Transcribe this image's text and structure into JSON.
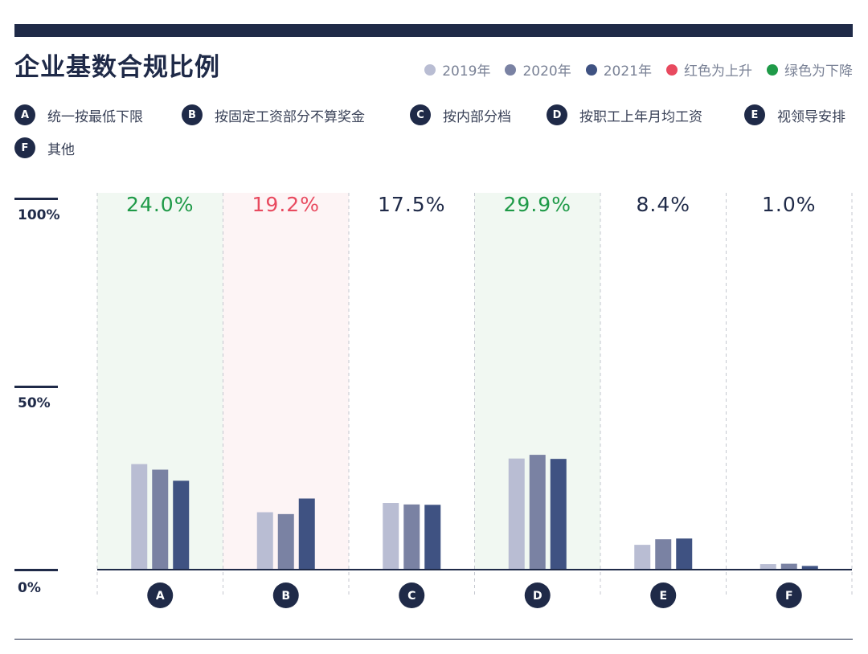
{
  "chart_data": {
    "type": "bar",
    "title": "企业基数合规比例",
    "categories": [
      "A",
      "B",
      "C",
      "D",
      "E",
      "F"
    ],
    "category_labels": [
      "统一按最低下限",
      "按固定工资部分不算奖金",
      "按内部分档",
      "按职工上年月均工资",
      "视领导安排",
      "其他"
    ],
    "series": [
      {
        "name": "2019年",
        "color": "#b9bdd3",
        "values": [
          28.5,
          15.5,
          18.0,
          30.0,
          6.7,
          1.5
        ]
      },
      {
        "name": "2020年",
        "color": "#7a82a3",
        "values": [
          27.0,
          15.0,
          17.6,
          31.0,
          8.2,
          1.6
        ]
      },
      {
        "name": "2021年",
        "color": "#3f5282",
        "values": [
          24.0,
          19.2,
          17.5,
          29.9,
          8.4,
          1.0
        ]
      }
    ],
    "value_labels": [
      "24.0%",
      "19.2%",
      "17.5%",
      "29.9%",
      "8.4%",
      "1.0%"
    ],
    "trend": [
      "down",
      "up",
      "none",
      "down",
      "none",
      "none"
    ],
    "trend_legend": [
      {
        "label": "红色为上升",
        "color": "#e84a5f"
      },
      {
        "label": "绿色为下降",
        "color": "#1f9a48"
      }
    ],
    "y_ticks": [
      "100%",
      "50%",
      "0%"
    ],
    "ylim": [
      0,
      100
    ],
    "colors": {
      "up": "#e84a5f",
      "down": "#1f9a48",
      "neutral": "#1f2a48",
      "up_bg": "#fdf4f5",
      "down_bg": "#f1f8f2"
    }
  }
}
